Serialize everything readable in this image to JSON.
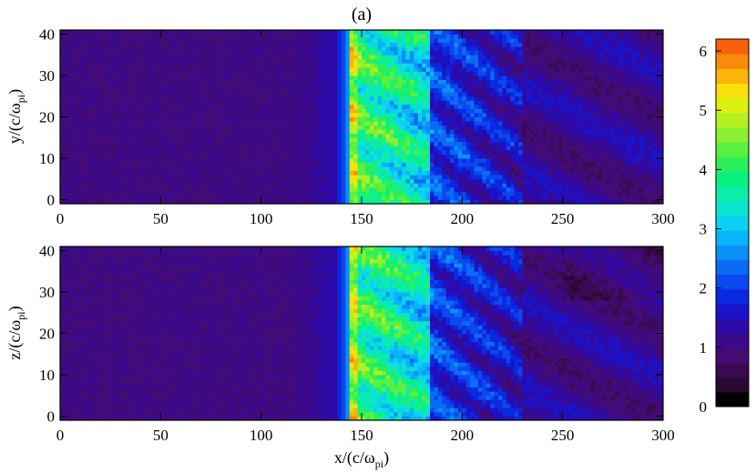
{
  "chart_data": [
    {
      "type": "heatmap",
      "title": "(a)",
      "xlabel": "",
      "ylabel_base": "y/(c/ω",
      "ylabel_sub": "pi",
      "ylabel_close": ")",
      "xlim": [
        0,
        300
      ],
      "ylim": [
        -1,
        41
      ],
      "x_ticks": [
        0,
        50,
        100,
        150,
        200,
        250,
        300
      ],
      "x_tick_labels": [
        "0",
        "50",
        "100",
        "150",
        "200",
        "250",
        "300"
      ],
      "y_ticks": [
        0,
        10,
        20,
        30,
        40
      ],
      "y_tick_labels": [
        "0",
        "10",
        "20",
        "30",
        "40"
      ],
      "features": {
        "background_value": 1.0,
        "shock_front_x": 145,
        "peak_band_x": [
          145,
          185
        ],
        "peak_value": 4.8,
        "downstream_value": 2.0
      }
    },
    {
      "type": "heatmap",
      "title": "",
      "xlabel_base": "x/(c/ω",
      "xlabel_sub": "pi",
      "xlabel_close": ")",
      "ylabel_base": "z/(c/ω",
      "ylabel_sub": "pi",
      "ylabel_close": ")",
      "xlim": [
        0,
        300
      ],
      "ylim": [
        -1,
        41
      ],
      "x_ticks": [
        0,
        50,
        100,
        150,
        200,
        250,
        300
      ],
      "x_tick_labels": [
        "0",
        "50",
        "100",
        "150",
        "200",
        "250",
        "300"
      ],
      "y_ticks": [
        0,
        10,
        20,
        30,
        40
      ],
      "y_tick_labels": [
        "0",
        "10",
        "20",
        "30",
        "40"
      ],
      "features": {
        "background_value": 1.0,
        "shock_front_x": 145,
        "peak_band_x": [
          145,
          185
        ],
        "peak_value": 4.8,
        "downstream_value": 2.0
      }
    }
  ],
  "colorbar": {
    "range": [
      0,
      6.2
    ],
    "ticks": [
      0,
      1,
      2,
      3,
      4,
      5,
      6
    ],
    "tick_labels": [
      "0",
      "1",
      "2",
      "3",
      "4",
      "5",
      "6"
    ],
    "levels": 25,
    "colors": [
      "#000000",
      "#2a0a33",
      "#3a0a55",
      "#430b73",
      "#3a0a8a",
      "#2d0aa8",
      "#1a14c8",
      "#0a2ae0",
      "#0a48f0",
      "#0a6cf5",
      "#0a90f8",
      "#0ab4fa",
      "#0ad2f0",
      "#0ae4d0",
      "#0aeea8",
      "#0af080",
      "#2af05a",
      "#5af040",
      "#8af030",
      "#b4f020",
      "#dcf010",
      "#fae00a",
      "#fab40a",
      "#fa8a0a",
      "#fa600a"
    ]
  }
}
